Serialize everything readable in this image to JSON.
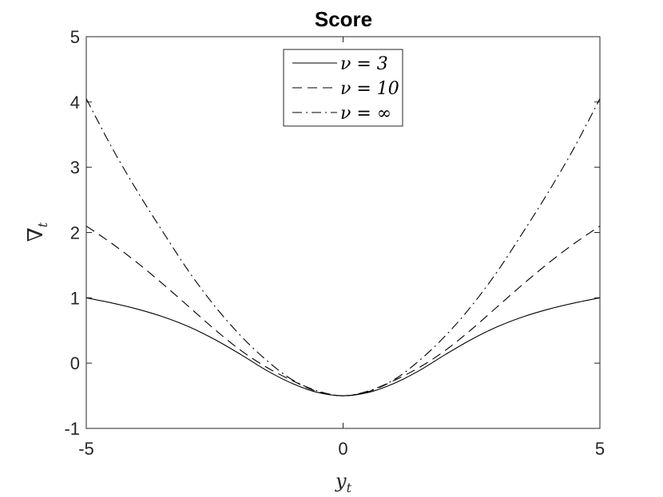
{
  "chart_data": {
    "type": "line",
    "title": "Score",
    "xlabel_main": "y",
    "xlabel_sub": "t",
    "ylabel_main": "∇",
    "ylabel_sub": "t",
    "xlim": [
      -5,
      5
    ],
    "ylim": [
      -1,
      5
    ],
    "xticks": [
      -5,
      0,
      5
    ],
    "yticks": [
      -1,
      0,
      1,
      2,
      3,
      4,
      5
    ],
    "grid": false,
    "legend_position": "top-center",
    "series": [
      {
        "name": "ν = 3",
        "style": "solid",
        "x": [
          -5,
          -4.5,
          -4,
          -3.5,
          -3,
          -2.5,
          -2,
          -1.5,
          -1,
          -0.5,
          0,
          0.5,
          1,
          1.5,
          2,
          2.5,
          3,
          3.5,
          4,
          4.5,
          5
        ],
        "y": [
          1.0,
          0.921,
          0.826,
          0.708,
          0.556,
          0.363,
          0.136,
          -0.107,
          -0.308,
          -0.448,
          -0.5,
          -0.448,
          -0.308,
          -0.107,
          0.136,
          0.363,
          0.556,
          0.708,
          0.826,
          0.921,
          1.0
        ]
      },
      {
        "name": "ν = 10",
        "style": "dashed",
        "x": [
          -5,
          -4.5,
          -4,
          -3.5,
          -3,
          -2.5,
          -2,
          -1.5,
          -1,
          -0.5,
          0,
          0.5,
          1,
          1.5,
          2,
          2.5,
          3,
          3.5,
          4,
          4.5,
          5
        ],
        "y": [
          2.1,
          1.832,
          1.533,
          1.206,
          0.862,
          0.516,
          0.2,
          -0.059,
          -0.264,
          -0.435,
          -0.5,
          -0.435,
          -0.264,
          -0.059,
          0.2,
          0.516,
          0.862,
          1.206,
          1.533,
          1.832,
          2.1
        ]
      },
      {
        "name": "ν = ∞",
        "style": "dashdot",
        "x": [
          -5,
          -4.5,
          -4,
          -3.5,
          -3,
          -2.5,
          -2,
          -1.5,
          -1,
          -0.5,
          0,
          0.5,
          1,
          1.5,
          2,
          2.5,
          3,
          3.5,
          4,
          4.5,
          5
        ],
        "y": [
          4.05,
          3.3,
          2.625,
          2.0,
          1.4,
          0.875,
          0.425,
          0.05,
          -0.25,
          -0.425,
          -0.5,
          -0.425,
          -0.25,
          0.05,
          0.425,
          0.875,
          1.4,
          2.0,
          2.625,
          3.3,
          4.05
        ]
      }
    ]
  }
}
